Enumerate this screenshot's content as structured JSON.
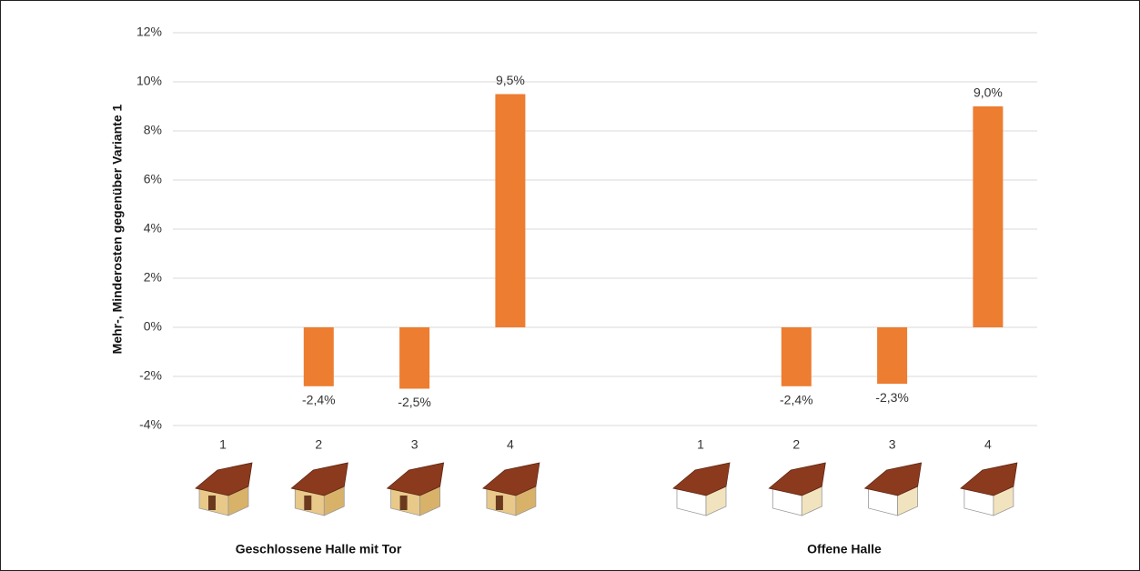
{
  "chart_data": {
    "type": "bar",
    "y_label": "Mehr-, Minderosten gegenüber Variante 1",
    "color": "#ed7d31",
    "grid": true,
    "ylim": [
      -4,
      12
    ],
    "yticks": [
      {
        "value": -4,
        "label": "-4%"
      },
      {
        "value": -2,
        "label": "-2%"
      },
      {
        "value": 0,
        "label": "0%"
      },
      {
        "value": 2,
        "label": "2%"
      },
      {
        "value": 4,
        "label": "4%"
      },
      {
        "value": 6,
        "label": "6%"
      },
      {
        "value": 8,
        "label": "8%"
      },
      {
        "value": 10,
        "label": "10%"
      },
      {
        "value": 12,
        "label": "12%"
      }
    ],
    "groups": [
      {
        "name": "Geschlossene Halle mit Tor",
        "categories": [
          "1",
          "2",
          "3",
          "4"
        ],
        "values": [
          0,
          -2.4,
          -2.5,
          9.5
        ],
        "value_labels": [
          null,
          "-2,4%",
          "-2,5%",
          "9,5%"
        ]
      },
      {
        "name": "Offene Halle",
        "categories": [
          "1",
          "2",
          "3",
          "4"
        ],
        "values": [
          0,
          -2.4,
          -2.3,
          9.0
        ],
        "value_labels": [
          null,
          "-2,4%",
          "-2,3%",
          "9,0%"
        ]
      }
    ]
  }
}
